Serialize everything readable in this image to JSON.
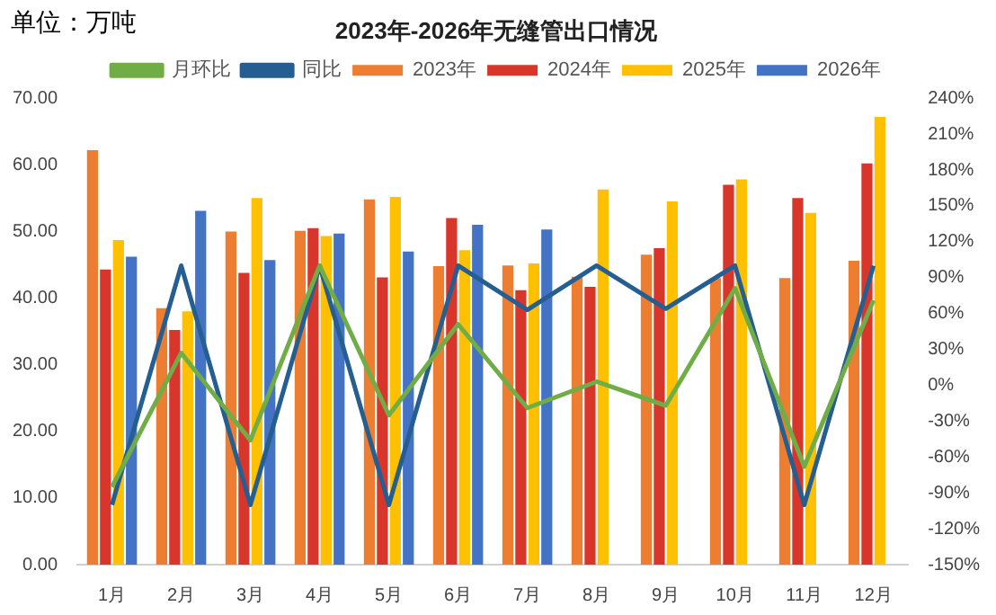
{
  "chart_data": {
    "type": "bar",
    "title": "2023年-2026年无缝管出口情况",
    "annotations": [
      "单位：万吨"
    ],
    "categories": [
      "1月",
      "2月",
      "3月",
      "4月",
      "5月",
      "6月",
      "7月",
      "8月",
      "9月",
      "10月",
      "11月",
      "12月"
    ],
    "series": [
      {
        "name": "2023年",
        "color": "#ed7d31",
        "values": [
          62.2,
          38.5,
          50.0,
          50.1,
          54.8,
          44.8,
          44.9,
          43.2,
          46.5,
          43.0,
          43.0,
          45.6
        ]
      },
      {
        "name": "2024年",
        "color": "#d9362b",
        "values": [
          44.3,
          35.2,
          43.8,
          50.5,
          43.1,
          52.0,
          41.2,
          41.7,
          47.5,
          57.0,
          55.0,
          60.2
        ]
      },
      {
        "name": "2025年",
        "color": "#ffc000",
        "values": [
          48.7,
          38.0,
          55.0,
          49.3,
          55.2,
          47.2,
          45.2,
          56.3,
          54.5,
          57.8,
          52.8,
          67.2
        ]
      },
      {
        "name": "2026年",
        "color": "#4472c4",
        "values": [
          46.2,
          53.1,
          45.7,
          49.7,
          47.0,
          51.0,
          50.3,
          null,
          null,
          null,
          null,
          null
        ]
      },
      {
        "name": "月环比",
        "type": "line",
        "axis": "y2",
        "color": "#70ad47",
        "values": [
          -85,
          27,
          -46,
          100,
          -25,
          51,
          -19,
          3,
          -17,
          81,
          -68,
          71
        ]
      },
      {
        "name": "同比",
        "type": "line",
        "axis": "y2",
        "color": "#255e91",
        "values": [
          -100,
          100,
          -100,
          100,
          -100,
          100,
          63,
          100,
          64,
          100,
          -100,
          100
        ]
      }
    ],
    "ylim": [
      0,
      70
    ],
    "yticks": [
      {
        "value": 0,
        "label": "0.00"
      },
      {
        "value": 10,
        "label": "10.00"
      },
      {
        "value": 20,
        "label": "20.00"
      },
      {
        "value": 30,
        "label": "30.00"
      },
      {
        "value": 40,
        "label": "40.00"
      },
      {
        "value": 50,
        "label": "50.00"
      },
      {
        "value": 60,
        "label": "60.00"
      },
      {
        "value": 70,
        "label": "70.00"
      }
    ],
    "y2lim": [
      -150,
      240
    ],
    "y2ticks": [
      {
        "value": -150,
        "label": "-150%"
      },
      {
        "value": -120,
        "label": "-120%"
      },
      {
        "value": -90,
        "label": "-90%"
      },
      {
        "value": -60,
        "label": "-60%"
      },
      {
        "value": -30,
        "label": "-30%"
      },
      {
        "value": 0,
        "label": "0%"
      },
      {
        "value": 30,
        "label": "30%"
      },
      {
        "value": 60,
        "label": "60%"
      },
      {
        "value": 90,
        "label": "90%"
      },
      {
        "value": 120,
        "label": "120%"
      },
      {
        "value": 150,
        "label": "150%"
      },
      {
        "value": 180,
        "label": "180%"
      },
      {
        "value": 210,
        "label": "210%"
      },
      {
        "value": 240,
        "label": "240%"
      }
    ],
    "legend": "top",
    "marker": "none",
    "grid": false
  }
}
